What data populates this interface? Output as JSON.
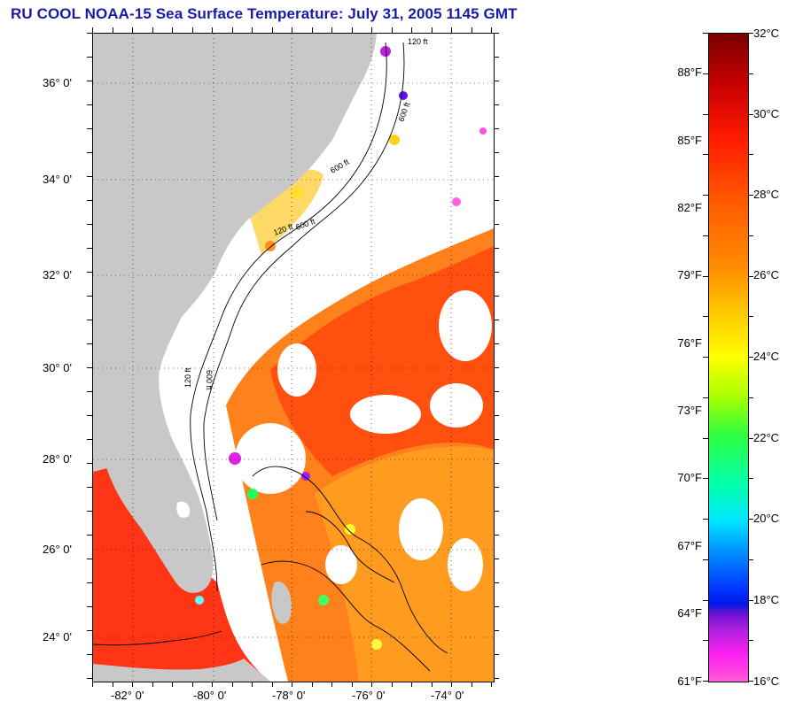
{
  "title": "RU COOL  NOAA-15  Sea Surface Temperature:  July 31, 2005 1145 GMT",
  "map": {
    "lat_labels": [
      "36° 0'",
      "34° 0'",
      "32° 0'",
      "30° 0'",
      "28° 0'",
      "26° 0'",
      "24° 0'"
    ],
    "lon_labels": [
      "-82° 0'",
      "-80° 0'",
      "-78° 0'",
      "-76° 0'",
      "-74° 0'"
    ],
    "lat_range": [
      23,
      37
    ],
    "lon_range": [
      -83.1,
      -73.0
    ],
    "land_color": "#c8c8c8",
    "cloud_color": "#ffffff",
    "contour_labels": [
      "120 ft",
      "600 ft",
      "600 ft",
      "120 ft",
      "600 ft",
      "120 ft",
      "600 ft"
    ]
  },
  "colorbar": {
    "fahrenheit": [
      "88°F",
      "85°F",
      "82°F",
      "79°F",
      "76°F",
      "73°F",
      "70°F",
      "67°F",
      "64°F",
      "61°F"
    ],
    "celsius": [
      "32°C",
      "30°C",
      "28°C",
      "26°C",
      "24°C",
      "22°C",
      "20°C",
      "18°C",
      "16°C"
    ],
    "range_c": [
      16,
      32
    ]
  }
}
